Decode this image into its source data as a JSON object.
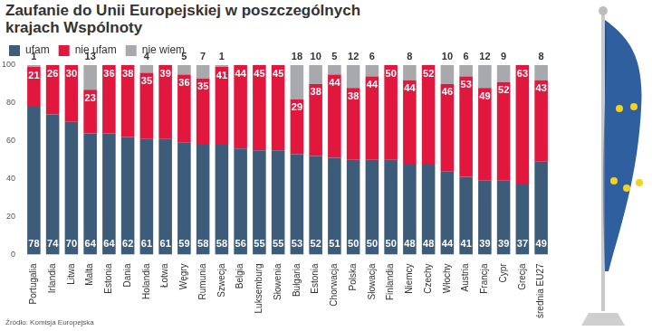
{
  "chart_data": {
    "type": "bar",
    "stacked": true,
    "data_labels": true,
    "grid": false,
    "legend": "top-left",
    "title": "Zaufanie do Unii Europejskiej w poszczególnych krajach Wspólnoty",
    "source": "Źródło: Komisja Europejska",
    "categories": [
      "Portugalia",
      "Irlandia",
      "Litwa",
      "Malta",
      "Estonia",
      "Dania",
      "Holandia",
      "Łotwa",
      "Węgry",
      "Rumunia",
      "Szwecja",
      "Belgia",
      "Luksemburg",
      "Słowenia",
      "Bułgaria",
      "Estonia",
      "Chorwacja",
      "Polska",
      "Słowacja",
      "Finlandia",
      "Niemcy",
      "Czechy",
      "Włochy",
      "Austria",
      "Francja",
      "Cypr",
      "Grecja",
      "średnia EU27"
    ],
    "series": [
      {
        "name": "ufam",
        "color": "#3d5c7a",
        "values": [
          78,
          74,
          70,
          64,
          64,
          62,
          61,
          61,
          59,
          58,
          58,
          56,
          55,
          55,
          53,
          52,
          51,
          50,
          50,
          50,
          48,
          48,
          44,
          41,
          39,
          39,
          37,
          49
        ]
      },
      {
        "name": "nie ufam",
        "color": "#e2173d",
        "values": [
          21,
          26,
          30,
          23,
          36,
          38,
          35,
          39,
          36,
          35,
          41,
          44,
          45,
          45,
          29,
          38,
          44,
          38,
          44,
          50,
          44,
          52,
          46,
          53,
          49,
          52,
          63,
          43
        ]
      },
      {
        "name": "nie wiem",
        "color": "#a8a9ad",
        "values": [
          1,
          0,
          0,
          13,
          0,
          0,
          4,
          0,
          5,
          7,
          1,
          0,
          0,
          0,
          18,
          10,
          5,
          12,
          6,
          0,
          8,
          0,
          10,
          6,
          12,
          9,
          0,
          8
        ]
      }
    ],
    "ylim": [
      0,
      100
    ],
    "yticks": [
      0,
      20,
      40,
      60,
      80,
      100
    ]
  }
}
